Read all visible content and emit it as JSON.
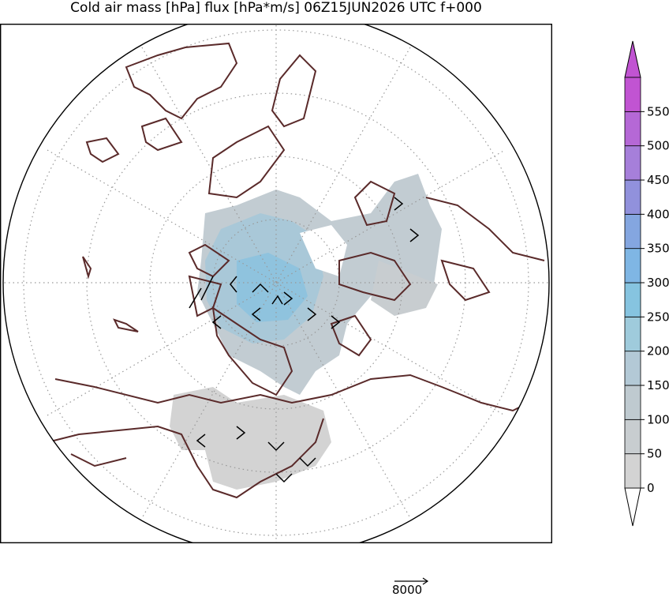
{
  "title": "Cold air mass [hPa] flux [hPa*m/s] 06Z15JUN2026 UTC f+000",
  "colorbar": {
    "ticks": [
      "0",
      "50",
      "100",
      "150",
      "200",
      "250",
      "300",
      "350",
      "400",
      "450",
      "500",
      "550"
    ],
    "colors": [
      "#d3d3d3",
      "#c8cdd0",
      "#bfcad0",
      "#b3c9d6",
      "#9fcbdc",
      "#86c4e0",
      "#7fb6e4",
      "#84a6e0",
      "#9191dc",
      "#a67fda",
      "#b568d6",
      "#c154d2"
    ]
  },
  "vector_key": {
    "label": "8000"
  },
  "map": {
    "projection": "north-polar-stereographic",
    "coastline_color": "#5a2a2a",
    "gridline_style": "dotted"
  }
}
